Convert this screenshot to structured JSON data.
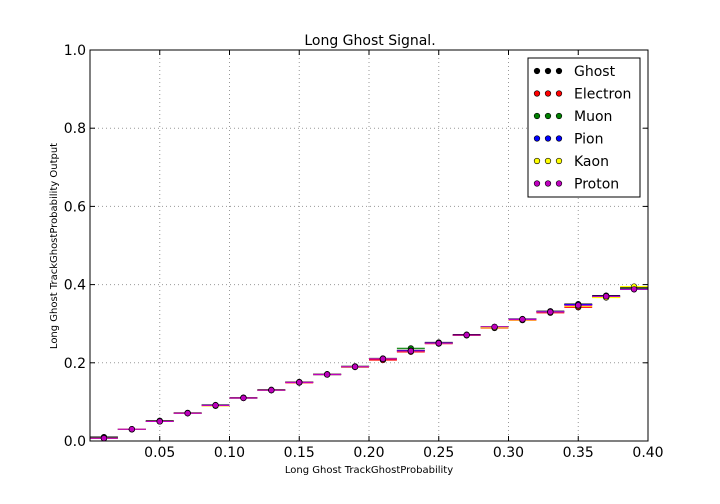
{
  "chart_data": {
    "type": "scatter",
    "title": "Long Ghost Signal.",
    "xlabel": "Long Ghost TrackGhostProbability",
    "ylabel": "Long Ghost TrackGhostProbability Output",
    "xlim": [
      0.0,
      0.4
    ],
    "ylim": [
      0.0,
      1.0
    ],
    "xticks": [
      0.05,
      0.1,
      0.15,
      0.2,
      0.25,
      0.3,
      0.35,
      0.4
    ],
    "xtick_labels": [
      "0.05",
      "0.10",
      "0.15",
      "0.20",
      "0.25",
      "0.30",
      "0.35",
      "0.40"
    ],
    "yticks": [
      0.0,
      0.2,
      0.4,
      0.6,
      0.8,
      1.0
    ],
    "ytick_labels": [
      "0.0",
      "0.2",
      "0.4",
      "0.6",
      "0.8",
      "1.0"
    ],
    "grid": true,
    "legend_position": "top-right",
    "bin_width": 0.02,
    "x": [
      0.01,
      0.03,
      0.05,
      0.07,
      0.09,
      0.11,
      0.13,
      0.15,
      0.17,
      0.19,
      0.21,
      0.23,
      0.25,
      0.27,
      0.29,
      0.31,
      0.33,
      0.35,
      0.37,
      0.39
    ],
    "series": [
      {
        "name": "Ghost",
        "color": "#000000",
        "values": [
          0.01,
          0.03,
          0.052,
          0.072,
          0.092,
          0.111,
          0.131,
          0.151,
          0.171,
          0.191,
          0.211,
          0.232,
          0.252,
          0.272,
          0.292,
          0.312,
          0.332,
          0.35,
          0.372,
          0.392
        ]
      },
      {
        "name": "Electron",
        "color": "#ff0000",
        "values": [
          0.007,
          0.03,
          0.05,
          0.071,
          0.09,
          0.11,
          0.13,
          0.149,
          0.17,
          0.189,
          0.207,
          0.228,
          0.249,
          0.27,
          0.289,
          0.309,
          0.328,
          0.342,
          0.368,
          0.39
        ]
      },
      {
        "name": "Muon",
        "color": "#008000",
        "values": [
          0.008,
          0.03,
          0.05,
          0.071,
          0.091,
          0.11,
          0.13,
          0.15,
          0.17,
          0.19,
          0.21,
          0.237,
          0.25,
          0.271,
          0.291,
          0.311,
          0.331,
          0.349,
          0.37,
          0.39
        ]
      },
      {
        "name": "Pion",
        "color": "#0000ff",
        "values": [
          0.007,
          0.03,
          0.05,
          0.071,
          0.091,
          0.11,
          0.13,
          0.15,
          0.17,
          0.19,
          0.21,
          0.231,
          0.251,
          0.271,
          0.291,
          0.311,
          0.331,
          0.349,
          0.37,
          0.388
        ]
      },
      {
        "name": "Kaon",
        "color": "#ffff00",
        "values": [
          0.007,
          0.03,
          0.05,
          0.071,
          0.09,
          0.11,
          0.13,
          0.15,
          0.17,
          0.19,
          0.21,
          0.23,
          0.25,
          0.271,
          0.29,
          0.31,
          0.33,
          0.345,
          0.367,
          0.395
        ]
      },
      {
        "name": "Proton",
        "color": "#bf00bf",
        "values": [
          0.007,
          0.03,
          0.05,
          0.071,
          0.091,
          0.11,
          0.13,
          0.15,
          0.17,
          0.19,
          0.21,
          0.23,
          0.25,
          0.271,
          0.292,
          0.311,
          0.33,
          0.347,
          0.37,
          0.388
        ]
      }
    ]
  }
}
